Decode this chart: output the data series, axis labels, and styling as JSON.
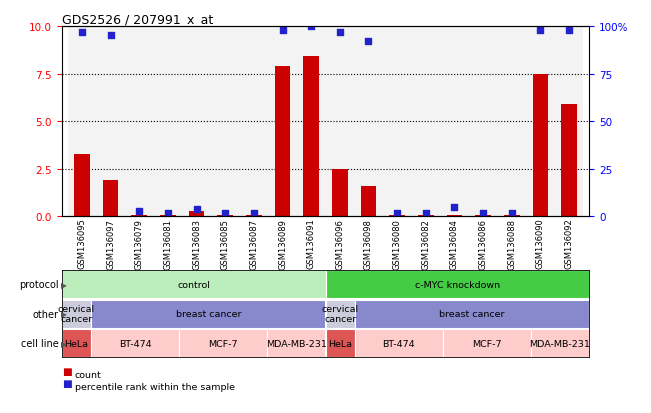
{
  "title": "GDS2526 / 207991_x_at",
  "samples": [
    "GSM136095",
    "GSM136097",
    "GSM136079",
    "GSM136081",
    "GSM136083",
    "GSM136085",
    "GSM136087",
    "GSM136089",
    "GSM136091",
    "GSM136096",
    "GSM136098",
    "GSM136080",
    "GSM136082",
    "GSM136084",
    "GSM136086",
    "GSM136088",
    "GSM136090",
    "GSM136092"
  ],
  "count_values": [
    3.3,
    1.9,
    0.05,
    0.05,
    0.3,
    0.05,
    0.05,
    7.9,
    8.4,
    2.5,
    1.6,
    0.05,
    0.05,
    0.05,
    0.05,
    0.05,
    7.5,
    5.9
  ],
  "percentile_values": [
    97,
    95,
    3,
    2,
    4,
    2,
    2,
    98,
    100,
    97,
    92,
    2,
    2,
    5,
    2,
    2,
    98,
    98
  ],
  "ylim_left": [
    0,
    10
  ],
  "ylim_right": [
    0,
    100
  ],
  "yticks_left": [
    0,
    2.5,
    5.0,
    7.5,
    10
  ],
  "yticks_right": [
    0,
    25,
    50,
    75,
    100
  ],
  "bar_color": "#cc0000",
  "dot_color": "#2222cc",
  "protocol_groups": [
    {
      "label": "control",
      "start": 0,
      "end": 9,
      "color": "#bbeebb"
    },
    {
      "label": "c-MYC knockdown",
      "start": 9,
      "end": 18,
      "color": "#44cc44"
    }
  ],
  "other_groups": [
    {
      "label": "cervical\ncancer",
      "start": 0,
      "end": 1,
      "color": "#ccccdd"
    },
    {
      "label": "breast cancer",
      "start": 1,
      "end": 9,
      "color": "#8888cc"
    },
    {
      "label": "cervical\ncancer",
      "start": 9,
      "end": 10,
      "color": "#ccccdd"
    },
    {
      "label": "breast cancer",
      "start": 10,
      "end": 18,
      "color": "#8888cc"
    }
  ],
  "cell_line_groups": [
    {
      "label": "HeLa",
      "start": 0,
      "end": 1,
      "color": "#dd5555"
    },
    {
      "label": "BT-474",
      "start": 1,
      "end": 4,
      "color": "#ffcccc"
    },
    {
      "label": "MCF-7",
      "start": 4,
      "end": 7,
      "color": "#ffcccc"
    },
    {
      "label": "MDA-MB-231",
      "start": 7,
      "end": 9,
      "color": "#ffcccc"
    },
    {
      "label": "HeLa",
      "start": 9,
      "end": 10,
      "color": "#dd5555"
    },
    {
      "label": "BT-474",
      "start": 10,
      "end": 13,
      "color": "#ffcccc"
    },
    {
      "label": "MCF-7",
      "start": 13,
      "end": 16,
      "color": "#ffcccc"
    },
    {
      "label": "MDA-MB-231",
      "start": 16,
      "end": 18,
      "color": "#ffcccc"
    }
  ],
  "legend_items": [
    {
      "color": "#cc0000",
      "label": "count"
    },
    {
      "color": "#2222cc",
      "label": "percentile rank within the sample"
    }
  ],
  "n_samples": 18
}
